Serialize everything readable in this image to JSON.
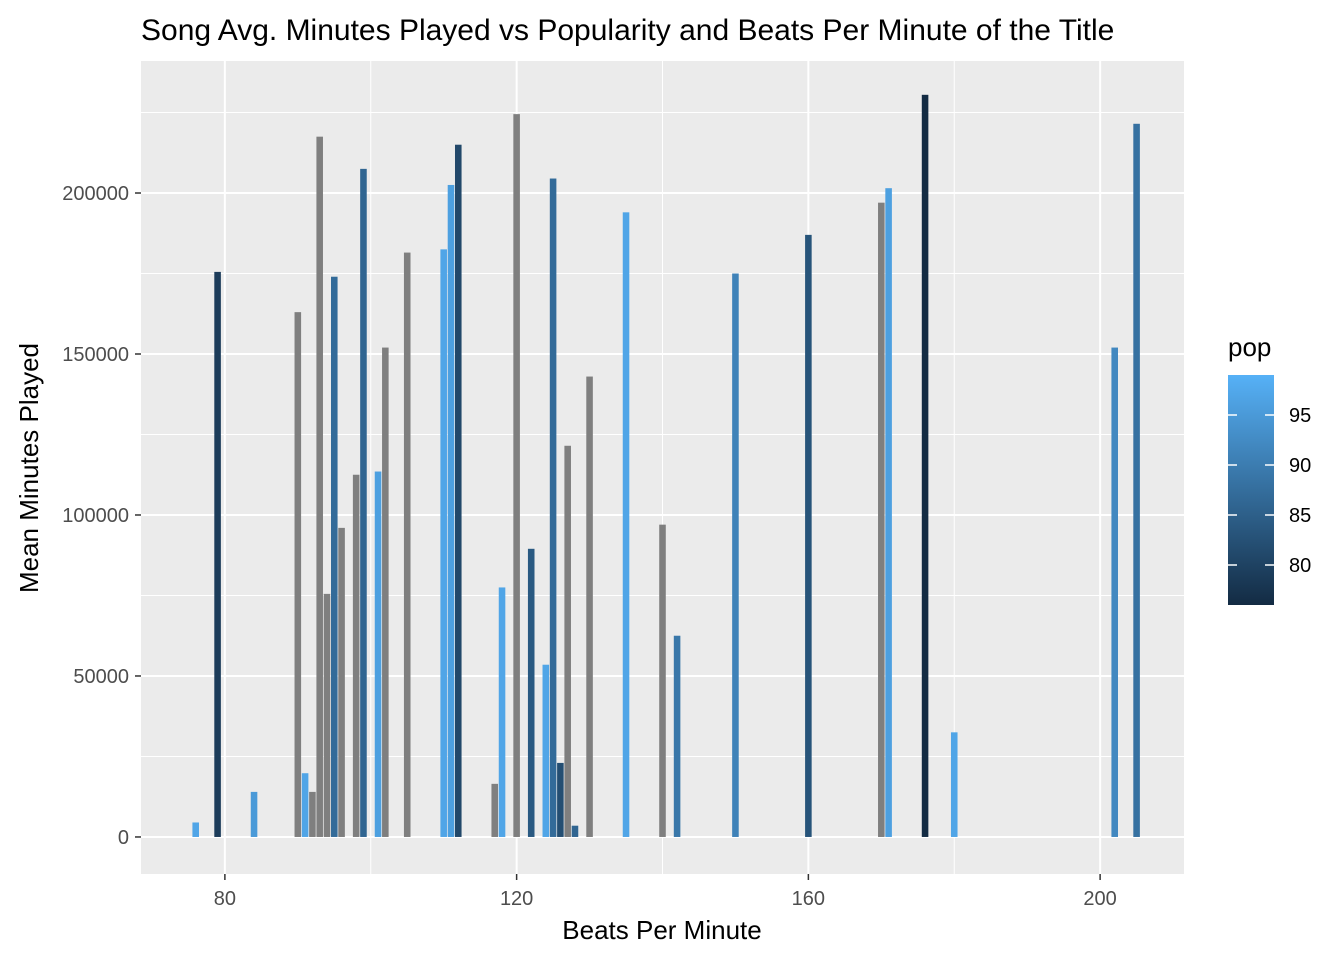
{
  "chart_data": {
    "type": "bar",
    "title": "Song Avg. Minutes Played vs Popularity and Beats Per Minute of the Title",
    "xlabel": "Beats Per Minute",
    "ylabel": "Mean Minutes Played",
    "xlim": [
      68.5,
      211.5
    ],
    "ylim": [
      -11500,
      241000
    ],
    "x_ticks": [
      80,
      120,
      160,
      200
    ],
    "x_tick_labels": [
      "80",
      "120",
      "160",
      "200"
    ],
    "y_ticks": [
      0,
      50000,
      100000,
      150000,
      200000
    ],
    "y_tick_labels": [
      "0",
      "50000",
      "100000",
      "150000",
      "200000"
    ],
    "grid": true,
    "legend": {
      "title": "pop",
      "placement": "right",
      "type": "colorbar",
      "range": [
        76,
        99
      ],
      "ticks": [
        80,
        85,
        90,
        95
      ],
      "tick_labels": [
        "80",
        "85",
        "90",
        "95"
      ],
      "low_color": "#132b43",
      "high_color": "#56b1f7",
      "na_color": "#7f7f7f"
    },
    "bars": [
      {
        "bpm": 76,
        "value": 4500,
        "pop": 97
      },
      {
        "bpm": 79,
        "value": 175500,
        "pop": 79
      },
      {
        "bpm": 84,
        "value": 14000,
        "pop": 95
      },
      {
        "bpm": 90,
        "value": 163000,
        "pop": null
      },
      {
        "bpm": 91,
        "value": 19800,
        "pop": 97
      },
      {
        "bpm": 92,
        "value": 14000,
        "pop": null
      },
      {
        "bpm": 93,
        "value": 217500,
        "pop": null
      },
      {
        "bpm": 94,
        "value": 75500,
        "pop": null
      },
      {
        "bpm": 95,
        "value": 174000,
        "pop": 87
      },
      {
        "bpm": 96,
        "value": 96000,
        "pop": null
      },
      {
        "bpm": 98,
        "value": 112500,
        "pop": null
      },
      {
        "bpm": 99,
        "value": 207500,
        "pop": 86
      },
      {
        "bpm": 101,
        "value": 113500,
        "pop": 96
      },
      {
        "bpm": 102,
        "value": 152000,
        "pop": null
      },
      {
        "bpm": 105,
        "value": 181500,
        "pop": null
      },
      {
        "bpm": 110,
        "value": 182500,
        "pop": 97
      },
      {
        "bpm": 111,
        "value": 202500,
        "pop": 96
      },
      {
        "bpm": 112,
        "value": 215000,
        "pop": 81
      },
      {
        "bpm": 117,
        "value": 16500,
        "pop": null
      },
      {
        "bpm": 118,
        "value": 77500,
        "pop": 97
      },
      {
        "bpm": 120,
        "value": 224500,
        "pop": null
      },
      {
        "bpm": 122,
        "value": 89500,
        "pop": 84
      },
      {
        "bpm": 124,
        "value": 53500,
        "pop": 97
      },
      {
        "bpm": 125,
        "value": 204500,
        "pop": 87
      },
      {
        "bpm": 126,
        "value": 23000,
        "pop": 82
      },
      {
        "bpm": 127,
        "value": 121500,
        "pop": null
      },
      {
        "bpm": 128,
        "value": 3500,
        "pop": 86
      },
      {
        "bpm": 130,
        "value": 143000,
        "pop": null
      },
      {
        "bpm": 135,
        "value": 194000,
        "pop": 97
      },
      {
        "bpm": 140,
        "value": 97000,
        "pop": null
      },
      {
        "bpm": 142,
        "value": 62500,
        "pop": 89
      },
      {
        "bpm": 150,
        "value": 175000,
        "pop": 91
      },
      {
        "bpm": 160,
        "value": 187000,
        "pop": 83
      },
      {
        "bpm": 170,
        "value": 197000,
        "pop": null
      },
      {
        "bpm": 171,
        "value": 201500,
        "pop": 96
      },
      {
        "bpm": 176,
        "value": 230500,
        "pop": 76
      },
      {
        "bpm": 180,
        "value": 32500,
        "pop": 97
      },
      {
        "bpm": 202,
        "value": 152000,
        "pop": 92
      },
      {
        "bpm": 205,
        "value": 221500,
        "pop": 88
      }
    ]
  }
}
